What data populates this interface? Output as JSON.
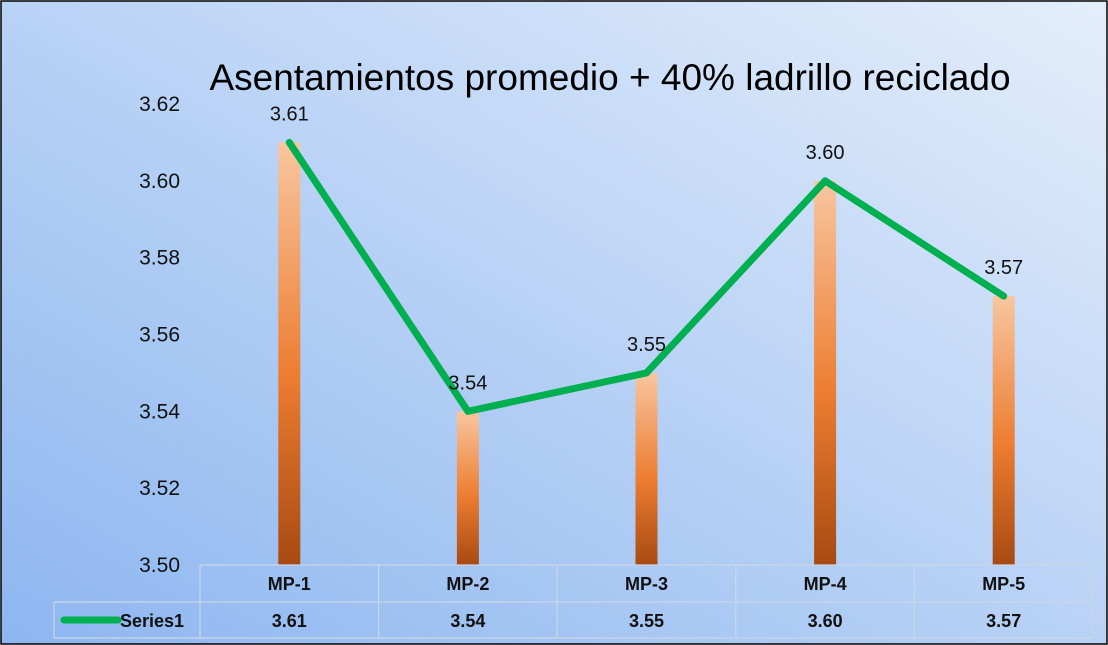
{
  "chart_data": {
    "type": "bar",
    "title": "Asentamientos promedio + 40% ladrillo reciclado",
    "categories": [
      "MP-1",
      "MP-2",
      "MP-3",
      "MP-4",
      "MP-5"
    ],
    "series": [
      {
        "name": "Series1",
        "values": [
          3.61,
          3.54,
          3.55,
          3.6,
          3.57
        ],
        "data_labels": [
          "3.61",
          "3.54",
          "3.55",
          "3.60",
          "3.57"
        ],
        "render": "bar+line"
      }
    ],
    "ylim": [
      3.5,
      3.62
    ],
    "yticks": [
      "3.62",
      "3.60",
      "3.58",
      "3.56",
      "3.54",
      "3.52",
      "3.50"
    ],
    "data_table": {
      "header": [
        "MP-1",
        "MP-2",
        "MP-3",
        "MP-4",
        "MP-5"
      ],
      "row_label": "Series1",
      "row_values": [
        "3.61",
        "3.54",
        "3.55",
        "3.60",
        "3.57"
      ]
    },
    "grid": false,
    "legend": "data-table",
    "colors": {
      "line": "#00B050",
      "bar_top": "#F8C6A0",
      "bar_mid": "#ED7D31",
      "bar_bottom": "#A84A12",
      "background_start": "#8DB6F0",
      "background_end": "#E4EEFB"
    }
  }
}
